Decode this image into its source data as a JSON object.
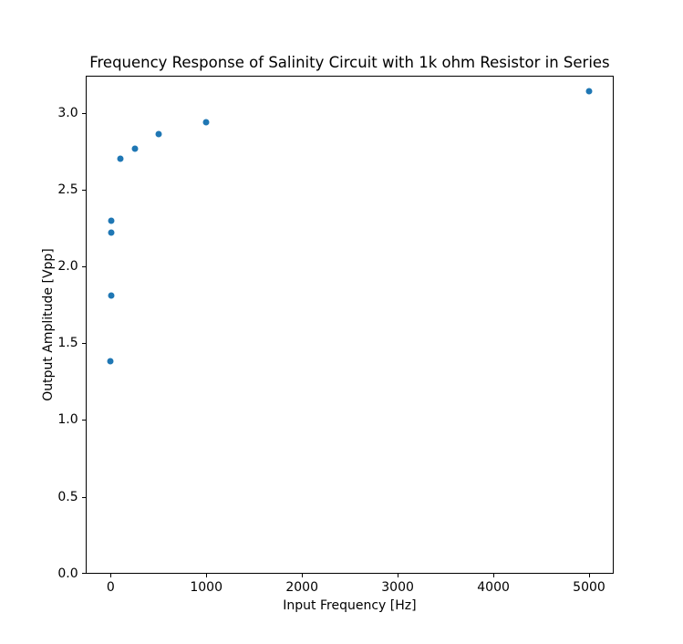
{
  "chart_data": {
    "type": "scatter",
    "title": "Frequency Response of Salinity Circuit with 1k ohm Resistor in Series",
    "xlabel": "Input Frequency [Hz]",
    "ylabel": "Output Amplitude [Vpp]",
    "x": [
      1,
      2,
      5,
      10,
      100,
      250,
      500,
      1000,
      5000
    ],
    "y": [
      1.38,
      1.81,
      2.22,
      2.3,
      2.7,
      2.77,
      2.86,
      2.94,
      3.14
    ],
    "xlim": [
      -264,
      5260
    ],
    "ylim": [
      0,
      3.244
    ],
    "xticks": [
      0,
      1000,
      2000,
      3000,
      4000,
      5000
    ],
    "xtick_labels": [
      "0",
      "1000",
      "2000",
      "3000",
      "4000",
      "5000"
    ],
    "yticks": [
      0.0,
      0.5,
      1.0,
      1.5,
      2.0,
      2.5,
      3.0
    ],
    "ytick_labels": [
      "0.0",
      "0.5",
      "1.0",
      "1.5",
      "2.0",
      "2.5",
      "3.0"
    ],
    "marker_color": "#1f77b4",
    "grid": false,
    "legend_position": "none",
    "background_color": "#ffffff"
  }
}
